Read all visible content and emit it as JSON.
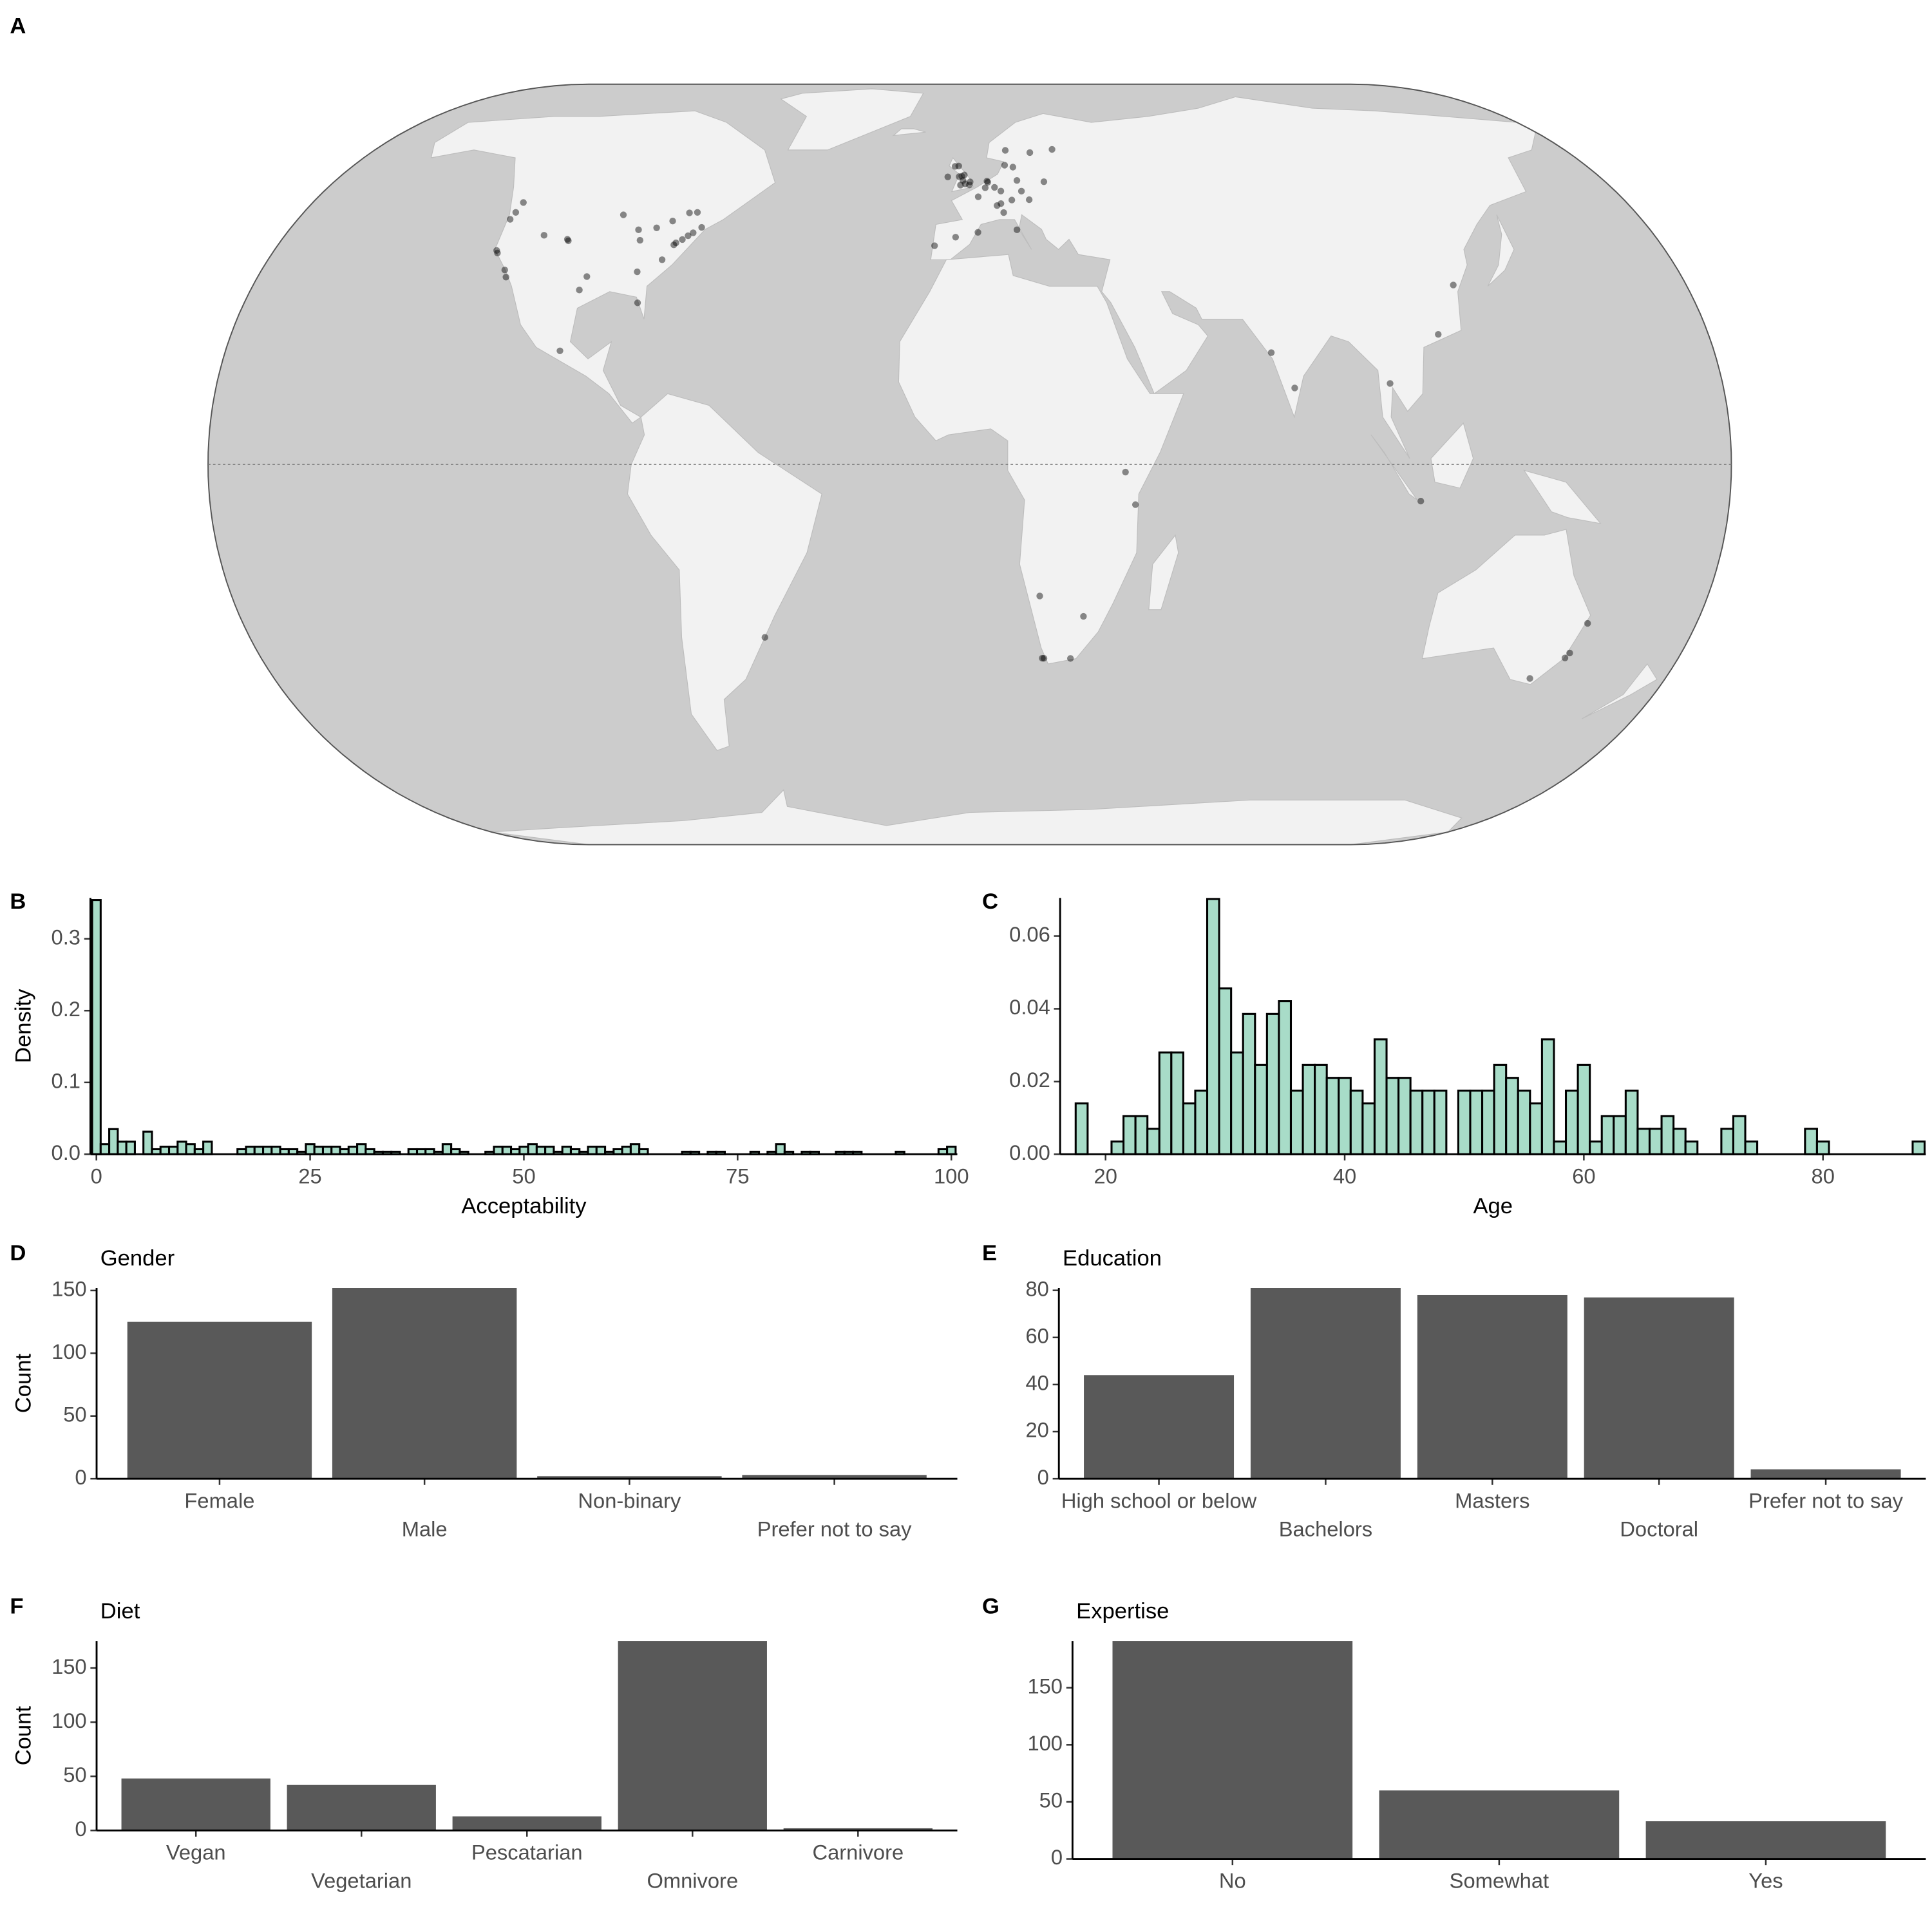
{
  "chart_data": [
    {
      "type": "map",
      "tag": "A",
      "lon": [
        -122.3,
        -122.7,
        -123.1,
        -122.4,
        -121.9,
        -118.2,
        -117.2,
        -111.9,
        -105.3,
        -104.9,
        -97.7,
        -96.8,
        -93.3,
        -87.6,
        -86.2,
        -83.0,
        -84.4,
        -79.4,
        -75.7,
        -73.6,
        -71.1,
        -72.9,
        -74.0,
        -75.2,
        -76.6,
        -77.0,
        -78.9,
        -82.4,
        -99.1,
        -0.1,
        -1.26,
        0.12,
        -3.2,
        -2.24,
        -2.6,
        -1.9,
        -1.55,
        -4.25,
        -6.26,
        -3.0,
        4.9,
        5.1,
        4.35,
        2.35,
        6.96,
        8.68,
        13.4,
        12.57,
        18.07,
        10.75,
        24.94,
        11.58,
        8.54,
        16.37,
        14.42,
        21.01,
        -3.7,
        -9.14,
        12.5,
        9.19,
        2.17,
        10.2,
        7.45,
        114.17,
        121.47,
        72.88,
        77.6,
        100.5,
        106.85,
        36.82,
        39.28,
        18.42,
        18.86,
        25.6,
        28.05,
        17.08,
        151.2,
        153.03,
        144.96,
        151.78,
        -51.2
      ],
      "lat": [
        47.6,
        45.5,
        44.05,
        37.8,
        37.3,
        34.05,
        32.7,
        40.8,
        40.0,
        39.7,
        30.3,
        32.8,
        44.98,
        41.9,
        39.8,
        42.3,
        33.7,
        43.7,
        45.4,
        45.5,
        42.4,
        41.3,
        40.7,
        39.95,
        39.3,
        38.9,
        36.0,
        27.95,
        19.4,
        51.5,
        51.75,
        52.2,
        55.95,
        53.48,
        51.45,
        52.5,
        53.8,
        55.86,
        53.35,
        53.4,
        52.37,
        52.1,
        50.85,
        48.85,
        50.94,
        50.11,
        52.52,
        55.68,
        59.33,
        59.91,
        60.17,
        48.14,
        47.37,
        48.21,
        50.09,
        52.23,
        40.42,
        38.72,
        41.9,
        45.46,
        41.39,
        56.15,
        46.95,
        22.3,
        31.23,
        19.08,
        12.97,
        13.75,
        -6.2,
        -1.29,
        -6.8,
        -33.92,
        -33.93,
        -33.96,
        -26.2,
        -22.56,
        -33.87,
        -27.47,
        -37.81,
        -32.93,
        -30.03
      ]
    },
    {
      "type": "histogram",
      "tag": "B",
      "x_label": "Acceptability",
      "y_label": "Density",
      "color": "#a8dcc8",
      "bins": [
        -0.5,
        0.5,
        1.5,
        2.5,
        3.5,
        4.5,
        5.5,
        6.5,
        7.5,
        8.5,
        9.5,
        10.5,
        11.5,
        12.5,
        13.5,
        14.5,
        15.5,
        16.5,
        17.5,
        18.5,
        19.5,
        20.5,
        21.5,
        22.5,
        23.5,
        24.5,
        25.5,
        26.5,
        27.5,
        28.5,
        29.5,
        30.5,
        31.5,
        32.5,
        33.5,
        34.5,
        35.5,
        36.5,
        37.5,
        38.5,
        39.5,
        40.5,
        41.5,
        42.5,
        43.5,
        44.5,
        45.5,
        46.5,
        47.5,
        48.5,
        49.5,
        50.5,
        51.5,
        52.5,
        53.5,
        54.5,
        55.5,
        56.5,
        57.5,
        58.5,
        59.5,
        60.5,
        61.5,
        62.5,
        63.5,
        64.5,
        65.5,
        66.5,
        67.5,
        68.5,
        69.5,
        70.5,
        71.5,
        72.5,
        73.5,
        74.5,
        75.5,
        76.5,
        77.5,
        78.5,
        79.5,
        80.5,
        81.5,
        82.5,
        83.5,
        84.5,
        85.5,
        86.5,
        87.5,
        88.5,
        89.5,
        90.5,
        91.5,
        92.5,
        93.5,
        94.5,
        95.5,
        96.5,
        97.5,
        98.5,
        99.5,
        100.5
      ],
      "values": [
        0.354,
        0.014,
        0.035,
        0.0175,
        0.0175,
        0,
        0.0315,
        0.007,
        0.0105,
        0.0105,
        0.0175,
        0.014,
        0.007,
        0.0175,
        0,
        0,
        0,
        0.007,
        0.0105,
        0.0105,
        0.0105,
        0.0105,
        0.007,
        0.007,
        0.0035,
        0.014,
        0.0105,
        0.0105,
        0.0105,
        0.007,
        0.0105,
        0.014,
        0.007,
        0.0035,
        0.0035,
        0.0035,
        0,
        0.007,
        0.007,
        0.007,
        0.0035,
        0.014,
        0.007,
        0.0035,
        0,
        0,
        0.0035,
        0.0105,
        0.0105,
        0.007,
        0.0105,
        0.014,
        0.0105,
        0.0105,
        0.0035,
        0.0105,
        0.007,
        0.0035,
        0.0105,
        0.0105,
        0.0035,
        0.007,
        0.0105,
        0.014,
        0.007,
        0,
        0,
        0,
        0,
        0.0035,
        0.0035,
        0,
        0.0035,
        0.0035,
        0,
        0,
        0,
        0.0035,
        0,
        0.0035,
        0.014,
        0.0035,
        0,
        0.0035,
        0.0035,
        0,
        0,
        0.0035,
        0.0035,
        0.0035,
        0,
        0,
        0,
        0,
        0.0035,
        0,
        0,
        0,
        0,
        0.007,
        0.0105
      ],
      "xlim": [
        -0.7,
        100.7
      ],
      "ylim": [
        0,
        0.357
      ],
      "xticks": [
        0,
        25,
        50,
        75,
        100
      ],
      "yticks": [
        {
          "value": 0,
          "label": "0.0"
        },
        {
          "value": 0.1,
          "label": "0.1"
        },
        {
          "value": 0.2,
          "label": "0.2"
        },
        {
          "value": 0.3,
          "label": "0.3"
        }
      ]
    },
    {
      "type": "histogram",
      "tag": "C",
      "x_label": "Age",
      "color": "#a8dcc8",
      "bins": [
        17.5,
        18.5,
        19.5,
        20.5,
        21.5,
        22.5,
        23.5,
        24.5,
        25.5,
        26.5,
        27.5,
        28.5,
        29.5,
        30.5,
        31.5,
        32.5,
        33.5,
        34.5,
        35.5,
        36.5,
        37.5,
        38.5,
        39.5,
        40.5,
        41.5,
        42.5,
        43.5,
        44.5,
        45.5,
        46.5,
        47.5,
        48.5,
        49.5,
        50.5,
        51.5,
        52.5,
        53.5,
        54.5,
        55.5,
        56.5,
        57.5,
        58.5,
        59.5,
        60.5,
        61.5,
        62.5,
        63.5,
        64.5,
        65.5,
        66.5,
        67.5,
        68.5,
        69.5,
        70.5,
        71.5,
        72.5,
        73.5,
        74.5,
        75.5,
        76.5,
        77.5,
        78.5,
        79.5,
        80.5,
        81.5,
        82.5,
        83.5,
        84.5,
        85.5,
        86.5,
        87.5,
        88.5
      ],
      "values": [
        0.014,
        0,
        0,
        0.0035,
        0.0105,
        0.0105,
        0.007,
        0.028,
        0.028,
        0.014,
        0.0175,
        0.0702,
        0.0456,
        0.028,
        0.0386,
        0.0246,
        0.0386,
        0.0421,
        0.0175,
        0.0246,
        0.0246,
        0.021,
        0.021,
        0.0175,
        0.014,
        0.0316,
        0.021,
        0.021,
        0.0175,
        0.0175,
        0.0175,
        0,
        0.0175,
        0.0175,
        0.0175,
        0.0246,
        0.021,
        0.0175,
        0.014,
        0.0316,
        0.0035,
        0.0175,
        0.0246,
        0.0035,
        0.0105,
        0.0105,
        0.0175,
        0.007,
        0.007,
        0.0105,
        0.007,
        0.0035,
        0,
        0,
        0.007,
        0.0105,
        0.0035,
        0,
        0,
        0,
        0,
        0.007,
        0.0035,
        0,
        0,
        0,
        0,
        0,
        0,
        0,
        0.0035
      ],
      "xlim": [
        16.2,
        88.6
      ],
      "ylim": [
        0,
        0.0705
      ],
      "xticks": [
        20,
        40,
        60,
        80
      ],
      "yticks": [
        {
          "value": 0,
          "label": "0.00"
        },
        {
          "value": 0.02,
          "label": "0.02"
        },
        {
          "value": 0.04,
          "label": "0.04"
        },
        {
          "value": 0.06,
          "label": "0.06"
        }
      ]
    },
    {
      "type": "bar",
      "tag": "D",
      "title": "Gender",
      "y_label": "Count",
      "color": "#595959",
      "categories": [
        "Female",
        "Male",
        "Non-binary",
        "Prefer not to say"
      ],
      "values": [
        125,
        152,
        2,
        3
      ],
      "ylim": [
        0,
        152
      ],
      "yticks": [
        0,
        50,
        100,
        150
      ]
    },
    {
      "type": "bar",
      "tag": "E",
      "title": "Education",
      "color": "#595959",
      "categories": [
        "High school or below",
        "Bachelors",
        "Masters",
        "Doctoral",
        "Prefer not to say"
      ],
      "values": [
        44,
        81,
        78,
        77,
        4
      ],
      "ylim": [
        0,
        81
      ],
      "yticks": [
        0,
        20,
        40,
        60,
        80
      ]
    },
    {
      "type": "bar",
      "tag": "F",
      "title": "Diet",
      "y_label": "Count",
      "color": "#595959",
      "categories": [
        "Vegan",
        "Vegetarian",
        "Pescatarian",
        "Omnivore",
        "Carnivore"
      ],
      "values": [
        48,
        42,
        13,
        175,
        2
      ],
      "ylim": [
        0,
        175
      ],
      "yticks": [
        0,
        50,
        100,
        150
      ]
    },
    {
      "type": "bar",
      "tag": "G",
      "title": "Expertise",
      "color": "#595959",
      "categories": [
        "No",
        "Somewhat",
        "Yes"
      ],
      "values": [
        191,
        60,
        33
      ],
      "ylim": [
        0,
        191
      ],
      "yticks": [
        0,
        50,
        100,
        150
      ]
    }
  ]
}
